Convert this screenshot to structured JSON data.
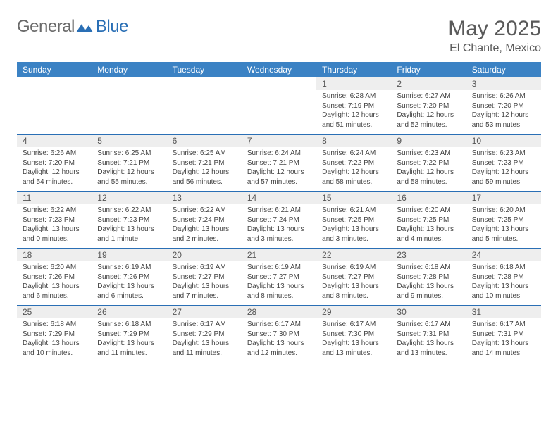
{
  "logo": {
    "general": "General",
    "blue": "Blue"
  },
  "title": "May 2025",
  "location": "El Chante, Mexico",
  "colors": {
    "header_bar": "#3b82c4",
    "week_divider": "#2a6fb5",
    "daynum_bg": "#eeeeee",
    "text": "#444444",
    "title_text": "#5a5a5a"
  },
  "day_names": [
    "Sunday",
    "Monday",
    "Tuesday",
    "Wednesday",
    "Thursday",
    "Friday",
    "Saturday"
  ],
  "weeks": [
    [
      {
        "empty": true
      },
      {
        "empty": true
      },
      {
        "empty": true
      },
      {
        "empty": true
      },
      {
        "day": "1",
        "sunrise": "Sunrise: 6:28 AM",
        "sunset": "Sunset: 7:19 PM",
        "daylight1": "Daylight: 12 hours",
        "daylight2": "and 51 minutes."
      },
      {
        "day": "2",
        "sunrise": "Sunrise: 6:27 AM",
        "sunset": "Sunset: 7:20 PM",
        "daylight1": "Daylight: 12 hours",
        "daylight2": "and 52 minutes."
      },
      {
        "day": "3",
        "sunrise": "Sunrise: 6:26 AM",
        "sunset": "Sunset: 7:20 PM",
        "daylight1": "Daylight: 12 hours",
        "daylight2": "and 53 minutes."
      }
    ],
    [
      {
        "day": "4",
        "sunrise": "Sunrise: 6:26 AM",
        "sunset": "Sunset: 7:20 PM",
        "daylight1": "Daylight: 12 hours",
        "daylight2": "and 54 minutes."
      },
      {
        "day": "5",
        "sunrise": "Sunrise: 6:25 AM",
        "sunset": "Sunset: 7:21 PM",
        "daylight1": "Daylight: 12 hours",
        "daylight2": "and 55 minutes."
      },
      {
        "day": "6",
        "sunrise": "Sunrise: 6:25 AM",
        "sunset": "Sunset: 7:21 PM",
        "daylight1": "Daylight: 12 hours",
        "daylight2": "and 56 minutes."
      },
      {
        "day": "7",
        "sunrise": "Sunrise: 6:24 AM",
        "sunset": "Sunset: 7:21 PM",
        "daylight1": "Daylight: 12 hours",
        "daylight2": "and 57 minutes."
      },
      {
        "day": "8",
        "sunrise": "Sunrise: 6:24 AM",
        "sunset": "Sunset: 7:22 PM",
        "daylight1": "Daylight: 12 hours",
        "daylight2": "and 58 minutes."
      },
      {
        "day": "9",
        "sunrise": "Sunrise: 6:23 AM",
        "sunset": "Sunset: 7:22 PM",
        "daylight1": "Daylight: 12 hours",
        "daylight2": "and 58 minutes."
      },
      {
        "day": "10",
        "sunrise": "Sunrise: 6:23 AM",
        "sunset": "Sunset: 7:23 PM",
        "daylight1": "Daylight: 12 hours",
        "daylight2": "and 59 minutes."
      }
    ],
    [
      {
        "day": "11",
        "sunrise": "Sunrise: 6:22 AM",
        "sunset": "Sunset: 7:23 PM",
        "daylight1": "Daylight: 13 hours",
        "daylight2": "and 0 minutes."
      },
      {
        "day": "12",
        "sunrise": "Sunrise: 6:22 AM",
        "sunset": "Sunset: 7:23 PM",
        "daylight1": "Daylight: 13 hours",
        "daylight2": "and 1 minute."
      },
      {
        "day": "13",
        "sunrise": "Sunrise: 6:22 AM",
        "sunset": "Sunset: 7:24 PM",
        "daylight1": "Daylight: 13 hours",
        "daylight2": "and 2 minutes."
      },
      {
        "day": "14",
        "sunrise": "Sunrise: 6:21 AM",
        "sunset": "Sunset: 7:24 PM",
        "daylight1": "Daylight: 13 hours",
        "daylight2": "and 3 minutes."
      },
      {
        "day": "15",
        "sunrise": "Sunrise: 6:21 AM",
        "sunset": "Sunset: 7:25 PM",
        "daylight1": "Daylight: 13 hours",
        "daylight2": "and 3 minutes."
      },
      {
        "day": "16",
        "sunrise": "Sunrise: 6:20 AM",
        "sunset": "Sunset: 7:25 PM",
        "daylight1": "Daylight: 13 hours",
        "daylight2": "and 4 minutes."
      },
      {
        "day": "17",
        "sunrise": "Sunrise: 6:20 AM",
        "sunset": "Sunset: 7:25 PM",
        "daylight1": "Daylight: 13 hours",
        "daylight2": "and 5 minutes."
      }
    ],
    [
      {
        "day": "18",
        "sunrise": "Sunrise: 6:20 AM",
        "sunset": "Sunset: 7:26 PM",
        "daylight1": "Daylight: 13 hours",
        "daylight2": "and 6 minutes."
      },
      {
        "day": "19",
        "sunrise": "Sunrise: 6:19 AM",
        "sunset": "Sunset: 7:26 PM",
        "daylight1": "Daylight: 13 hours",
        "daylight2": "and 6 minutes."
      },
      {
        "day": "20",
        "sunrise": "Sunrise: 6:19 AM",
        "sunset": "Sunset: 7:27 PM",
        "daylight1": "Daylight: 13 hours",
        "daylight2": "and 7 minutes."
      },
      {
        "day": "21",
        "sunrise": "Sunrise: 6:19 AM",
        "sunset": "Sunset: 7:27 PM",
        "daylight1": "Daylight: 13 hours",
        "daylight2": "and 8 minutes."
      },
      {
        "day": "22",
        "sunrise": "Sunrise: 6:19 AM",
        "sunset": "Sunset: 7:27 PM",
        "daylight1": "Daylight: 13 hours",
        "daylight2": "and 8 minutes."
      },
      {
        "day": "23",
        "sunrise": "Sunrise: 6:18 AM",
        "sunset": "Sunset: 7:28 PM",
        "daylight1": "Daylight: 13 hours",
        "daylight2": "and 9 minutes."
      },
      {
        "day": "24",
        "sunrise": "Sunrise: 6:18 AM",
        "sunset": "Sunset: 7:28 PM",
        "daylight1": "Daylight: 13 hours",
        "daylight2": "and 10 minutes."
      }
    ],
    [
      {
        "day": "25",
        "sunrise": "Sunrise: 6:18 AM",
        "sunset": "Sunset: 7:29 PM",
        "daylight1": "Daylight: 13 hours",
        "daylight2": "and 10 minutes."
      },
      {
        "day": "26",
        "sunrise": "Sunrise: 6:18 AM",
        "sunset": "Sunset: 7:29 PM",
        "daylight1": "Daylight: 13 hours",
        "daylight2": "and 11 minutes."
      },
      {
        "day": "27",
        "sunrise": "Sunrise: 6:17 AM",
        "sunset": "Sunset: 7:29 PM",
        "daylight1": "Daylight: 13 hours",
        "daylight2": "and 11 minutes."
      },
      {
        "day": "28",
        "sunrise": "Sunrise: 6:17 AM",
        "sunset": "Sunset: 7:30 PM",
        "daylight1": "Daylight: 13 hours",
        "daylight2": "and 12 minutes."
      },
      {
        "day": "29",
        "sunrise": "Sunrise: 6:17 AM",
        "sunset": "Sunset: 7:30 PM",
        "daylight1": "Daylight: 13 hours",
        "daylight2": "and 13 minutes."
      },
      {
        "day": "30",
        "sunrise": "Sunrise: 6:17 AM",
        "sunset": "Sunset: 7:31 PM",
        "daylight1": "Daylight: 13 hours",
        "daylight2": "and 13 minutes."
      },
      {
        "day": "31",
        "sunrise": "Sunrise: 6:17 AM",
        "sunset": "Sunset: 7:31 PM",
        "daylight1": "Daylight: 13 hours",
        "daylight2": "and 14 minutes."
      }
    ]
  ]
}
